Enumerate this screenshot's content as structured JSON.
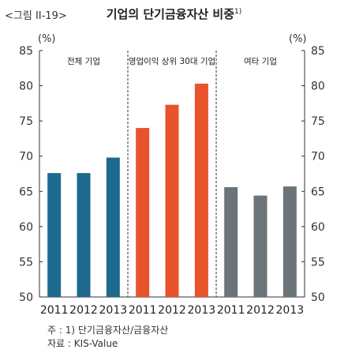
{
  "figure_label": "<그림 II-19>",
  "title": "기업의 단기금융자산 비중",
  "title_note_mark": "1)",
  "notes": [
    "주 : 1) 단기금융자산/금융자산",
    "자료 : KIS-Value"
  ],
  "chart_data": {
    "type": "bar",
    "unit": "(%)",
    "ylim": [
      50,
      85
    ],
    "yticks": [
      50,
      55,
      60,
      65,
      70,
      75,
      80,
      85
    ],
    "dual_y_axis": true,
    "grid": false,
    "groups": [
      {
        "name": "전체 기업",
        "color": "#1e6a8e",
        "categories": [
          "2011",
          "2012",
          "2013"
        ],
        "values": [
          67.6,
          67.6,
          69.8
        ]
      },
      {
        "name": "영업이익 상위 30대 기업",
        "color": "#e8532c",
        "categories": [
          "2011",
          "2012",
          "2013"
        ],
        "values": [
          74.0,
          77.3,
          80.3
        ]
      },
      {
        "name": "여타 기업",
        "color": "#6b7478",
        "categories": [
          "2011",
          "2012",
          "2013"
        ],
        "values": [
          65.6,
          64.4,
          65.7
        ]
      }
    ]
  }
}
